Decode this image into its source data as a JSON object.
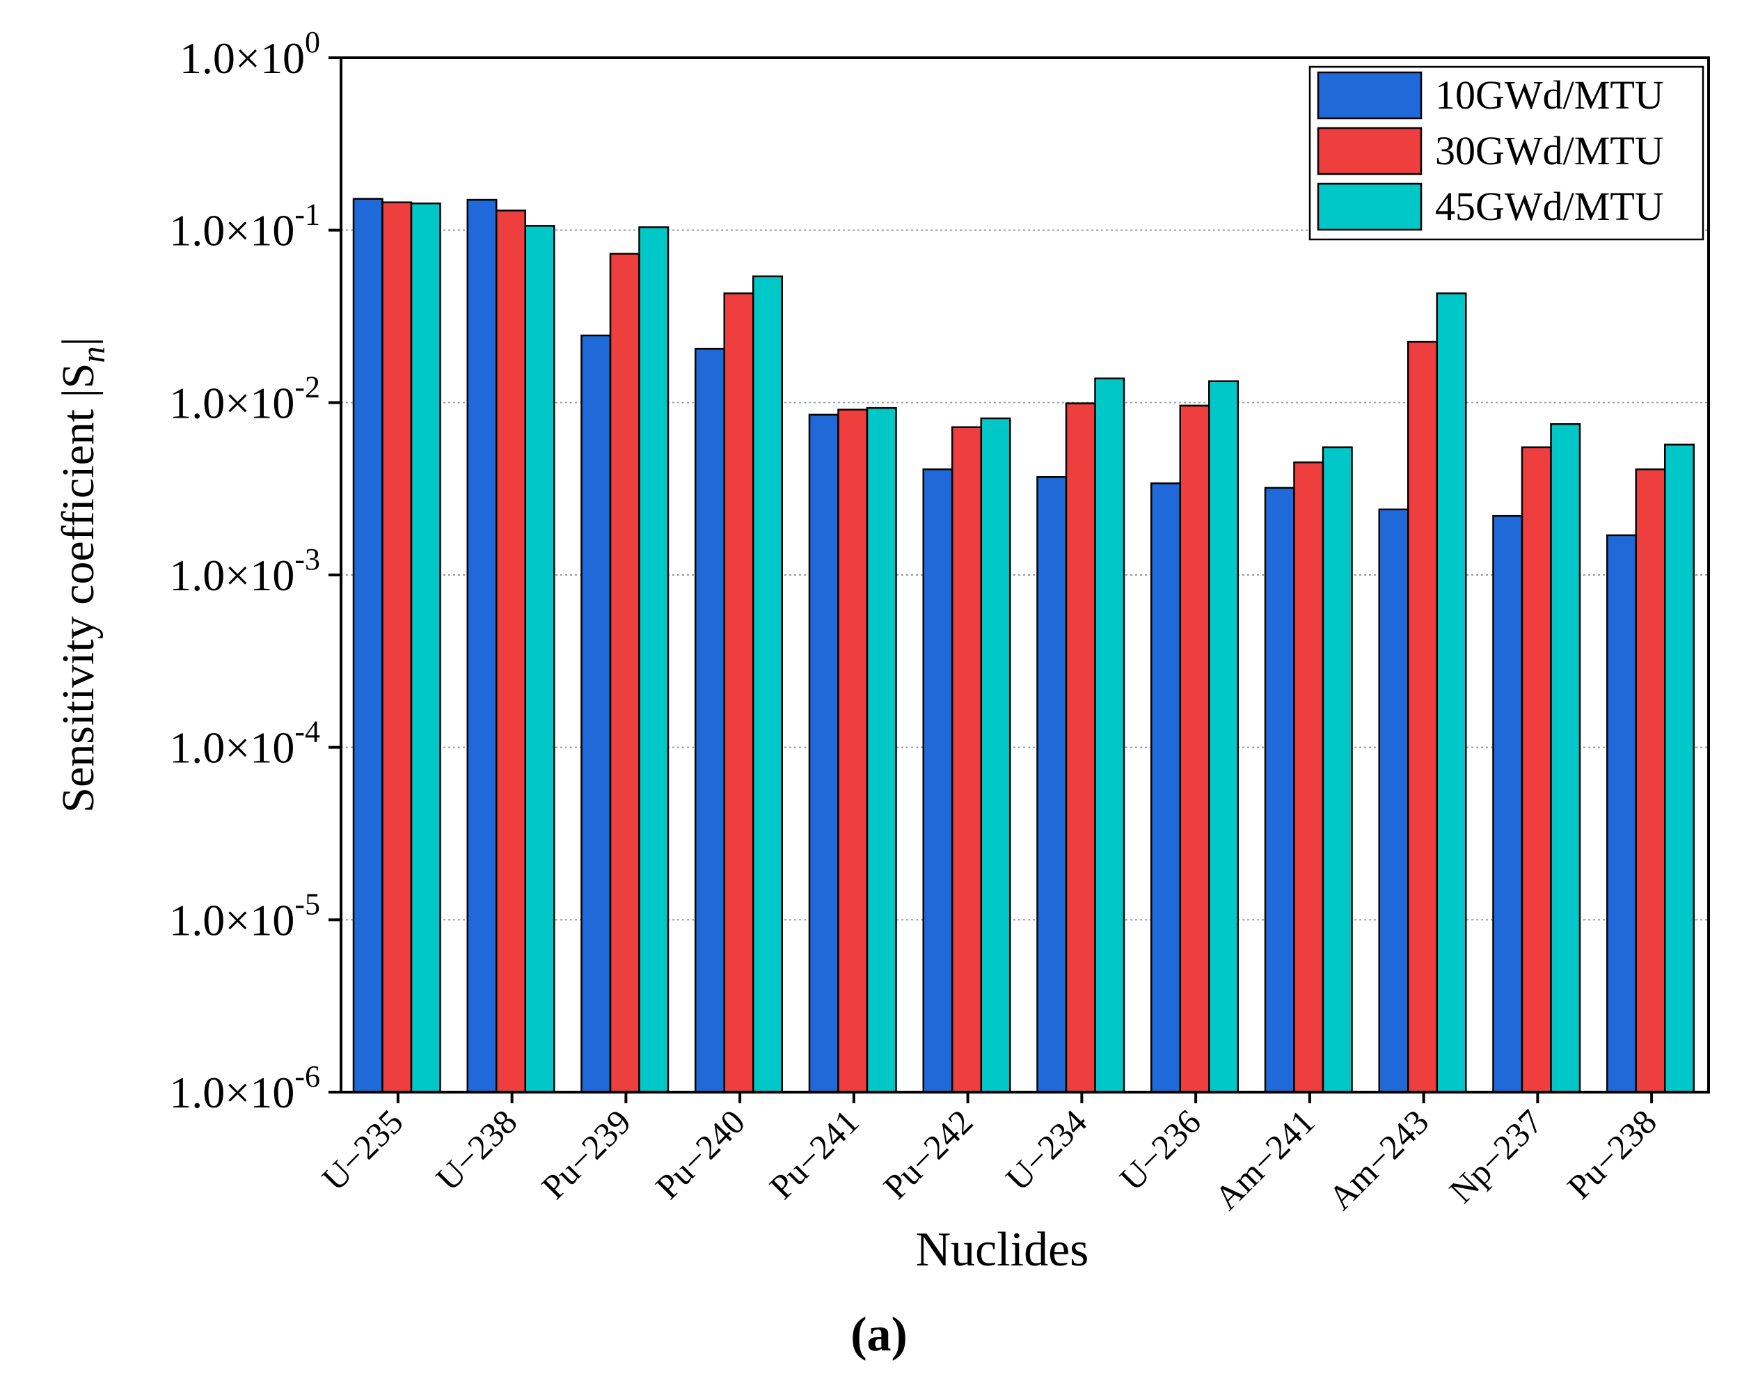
{
  "chart_data": {
    "type": "bar",
    "yscale": "log",
    "xlabel": "Nuclides",
    "ylabel": "Sensitivity coefficient |S",
    "ylabel_subscript": "n",
    "ylabel_suffix": "|",
    "panel_label": "(a)",
    "ylim": [
      1e-06,
      1
    ],
    "yticks": [
      {
        "mantissa": "1.0×10",
        "exp": "0"
      },
      {
        "mantissa": "1.0×10",
        "exp": "-1"
      },
      {
        "mantissa": "1.0×10",
        "exp": "-2"
      },
      {
        "mantissa": "1.0×10",
        "exp": "-3"
      },
      {
        "mantissa": "1.0×10",
        "exp": "-4"
      },
      {
        "mantissa": "1.0×10",
        "exp": "-5"
      },
      {
        "mantissa": "1.0×10",
        "exp": "-6"
      }
    ],
    "grid": true,
    "legend_position": "top-right",
    "categories": [
      "U−235",
      "U−238",
      "Pu−239",
      "Pu−240",
      "Pu−241",
      "Pu−242",
      "U−234",
      "U−236",
      "Am−241",
      "Am−243",
      "Np−237",
      "Pu−238"
    ],
    "series": [
      {
        "name": "10GWd/MTU",
        "color": "#1f6ad8",
        "values": [
          0.152,
          0.15,
          0.0245,
          0.0205,
          0.0085,
          0.0041,
          0.0037,
          0.0034,
          0.0032,
          0.0024,
          0.0022,
          0.0017
        ]
      },
      {
        "name": "30GWd/MTU",
        "color": "#ee3e3e",
        "values": [
          0.145,
          0.13,
          0.073,
          0.043,
          0.0091,
          0.0072,
          0.0099,
          0.0096,
          0.0045,
          0.0225,
          0.0055,
          0.0041
        ]
      },
      {
        "name": "45GWd/MTU",
        "color": "#00c8c8",
        "values": [
          0.143,
          0.106,
          0.104,
          0.054,
          0.0093,
          0.0081,
          0.0138,
          0.0133,
          0.0055,
          0.043,
          0.0075,
          0.0057
        ]
      }
    ]
  }
}
